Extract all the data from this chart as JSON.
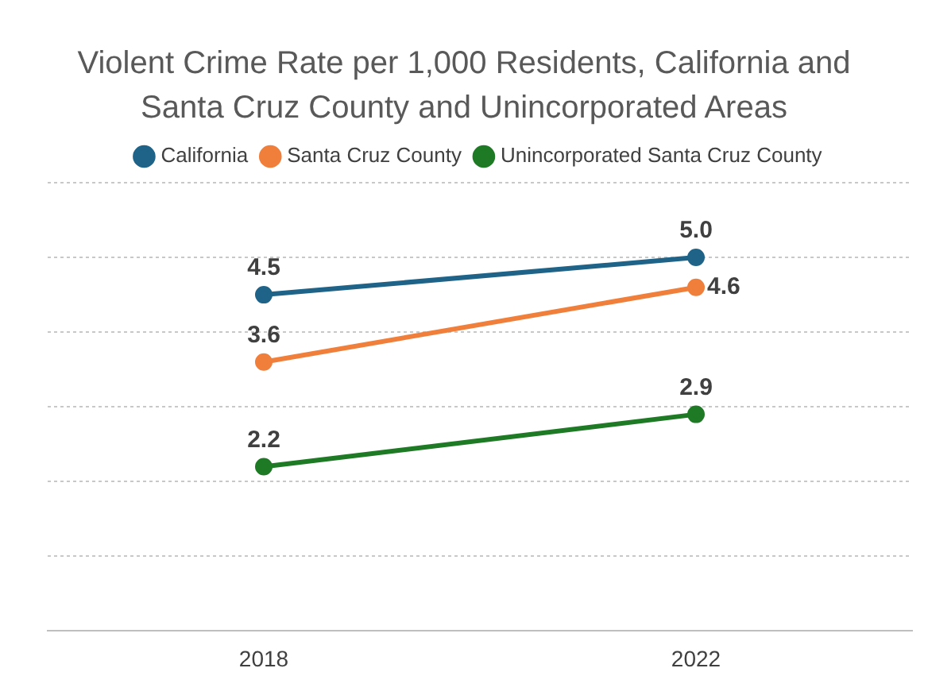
{
  "chart_data": {
    "type": "line",
    "title": "Violent Crime Rate per 1,000 Residents, California and Santa Cruz County and Unincorporated Areas",
    "categories": [
      "2018",
      "2022"
    ],
    "series": [
      {
        "name": "California",
        "color": "#1f6388",
        "values": [
          4.5,
          5.0
        ],
        "value_labels": [
          "4.5",
          "5.0"
        ]
      },
      {
        "name": "Santa Cruz County",
        "color": "#f07f3b",
        "values": [
          3.6,
          4.6
        ],
        "value_labels": [
          "3.6",
          "4.6"
        ]
      },
      {
        "name": "Unincorporated Santa Cruz County",
        "color": "#1f7a25",
        "values": [
          2.2,
          2.9
        ],
        "value_labels": [
          "2.2",
          "2.9"
        ]
      }
    ],
    "ylim": [
      0,
      6
    ],
    "yticks": [
      {
        "value": 0,
        "label": null
      },
      {
        "value": 1,
        "label": null
      },
      {
        "value": 2,
        "label": null
      },
      {
        "value": 3,
        "label": null
      },
      {
        "value": 4,
        "label": null
      },
      {
        "value": 5,
        "label": null
      },
      {
        "value": 6,
        "label": null
      }
    ],
    "tick_labels": "x",
    "grid": "y",
    "legend": "top",
    "marker": "circle",
    "line_style": "solid"
  }
}
